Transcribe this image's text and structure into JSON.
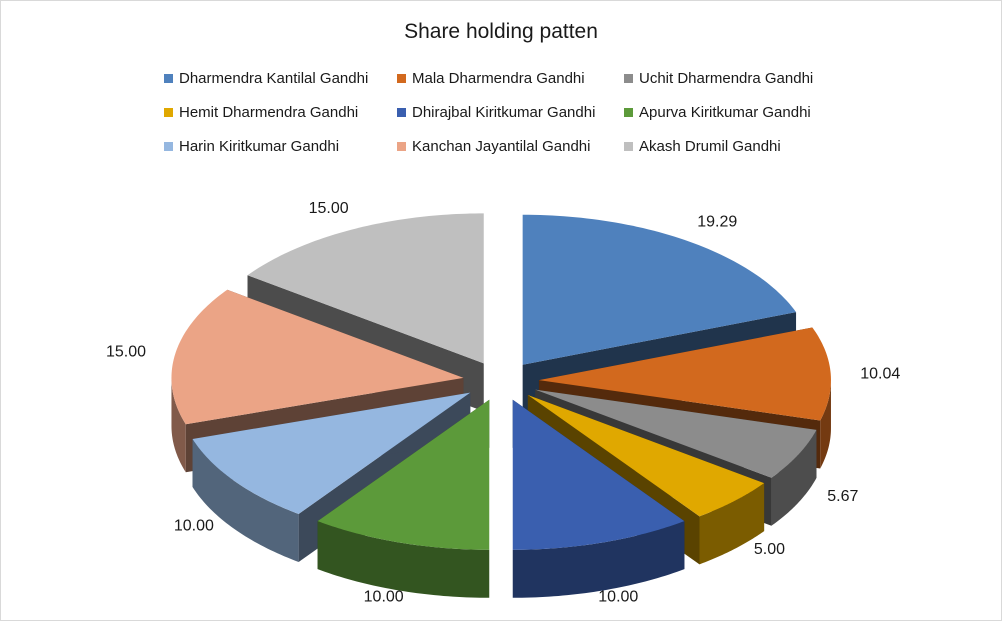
{
  "chart_data": {
    "type": "pie",
    "title": "Share holding patten",
    "legend_position": "top",
    "exploded": true,
    "three_d": true,
    "slices": [
      {
        "name": "Dharmendra Kantilal Gandhi",
        "value": 19.29,
        "label": "19.29",
        "color": "#4f81bd"
      },
      {
        "name": "Mala Dharmendra Gandhi",
        "value": 10.04,
        "label": "10.04",
        "color": "#d2691e"
      },
      {
        "name": "Uchit Dharmendra Gandhi",
        "value": 5.67,
        "label": "5.67",
        "color": "#8c8c8c"
      },
      {
        "name": "Hemit Dharmendra Gandhi",
        "value": 5.0,
        "label": "5.00",
        "color": "#e0a800"
      },
      {
        "name": "Dhirajbal Kiritkumar Gandhi",
        "value": 10.0,
        "label": "10.00",
        "color": "#3a5faf"
      },
      {
        "name": "Apurva Kiritkumar Gandhi",
        "value": 10.0,
        "label": "10.00",
        "color": "#5c9a3a"
      },
      {
        "name": "Harin Kiritkumar Gandhi",
        "value": 10.0,
        "label": "10.00",
        "color": "#95b7e0"
      },
      {
        "name": "Kanchan Jayantilal Gandhi",
        "value": 15.0,
        "label": "15.00",
        "color": "#eba486"
      },
      {
        "name": "Akash Drumil Gandhi",
        "value": 15.0,
        "label": "15.00",
        "color": "#bfbfbf"
      }
    ]
  }
}
